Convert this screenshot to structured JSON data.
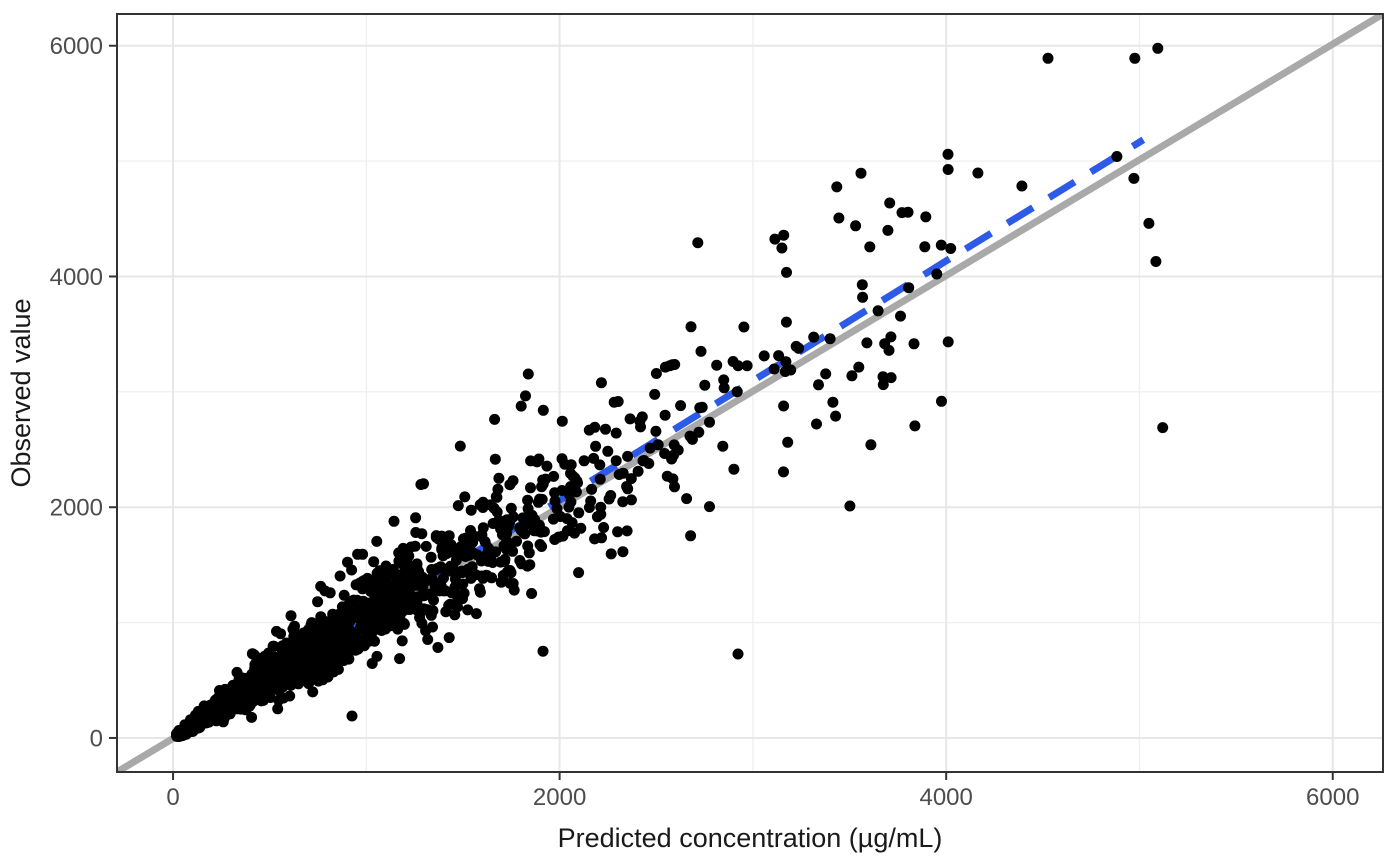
{
  "figure": {
    "background": "#FFFFFF"
  },
  "chart_data": {
    "type": "scatter",
    "title": "",
    "xlabel": "Predicted concentration (µg/mL)",
    "ylabel": "Observed value",
    "xlim": [
      -290,
      6260
    ],
    "ylim": [
      -295,
      6275
    ],
    "x_ticks": [
      0,
      2000,
      4000,
      6000
    ],
    "x_minor_ticks": [
      1000,
      3000,
      5000
    ],
    "y_ticks": [
      0,
      2000,
      4000,
      6000
    ],
    "y_minor_ticks": [
      1000,
      3000,
      5000
    ],
    "grid": true,
    "legend": "none",
    "points": {
      "color": "#000000",
      "radius": 5.5,
      "n_total": 1904,
      "distribution": {
        "seed": 20240607,
        "n_random": 1880,
        "x_model": "truncated_exponential",
        "x_mean": 800,
        "x_min": 18,
        "x_max": 4080,
        "y_model": "y = x * exp(N(0.025, 0.165)) (12% wide: sigma 0.29) + N(0, 14)",
        "multiplier_clamp": [
          0.42,
          1.72
        ],
        "multiplier_clamp_high_x": [
          0.55,
          1.38
        ],
        "high_x_threshold": 2900,
        "y_min": 12
      },
      "explicit_points": [
        [
          4527,
          5891
        ],
        [
          4976,
          5891
        ],
        [
          5095,
          5978
        ],
        [
          4883,
          5040
        ],
        [
          4971,
          4850
        ],
        [
          4392,
          4784
        ],
        [
          4164,
          4897
        ],
        [
          5049,
          4460
        ],
        [
          5085,
          4130
        ],
        [
          3434,
          4776
        ],
        [
          3708,
          4637
        ],
        [
          3445,
          4507
        ],
        [
          3150,
          4247
        ],
        [
          3605,
          4256
        ],
        [
          3590,
          3424
        ],
        [
          3714,
          3476
        ],
        [
          3512,
          3139
        ],
        [
          3673,
          3130
        ],
        [
          3838,
          2705
        ],
        [
          3502,
          2011
        ],
        [
          5120,
          2690
        ],
        [
          926,
          190
        ],
        [
          1914,
          752
        ],
        [
          2923,
          728
        ]
      ]
    },
    "identity_line": {
      "style": "solid",
      "color": "#A9A9A9",
      "width": 7,
      "from": [
        -290,
        -295
      ],
      "to": [
        6260,
        6275
      ]
    },
    "smooth_line": {
      "style": "dashed",
      "color": "#2D5AE6",
      "width": 7,
      "dash": [
        30,
        19
      ],
      "points": [
        [
          0,
          5
        ],
        [
          1000,
          1028
        ],
        [
          2000,
          2060
        ],
        [
          3000,
          3096
        ],
        [
          4000,
          4135
        ],
        [
          5020,
          5185
        ]
      ]
    }
  },
  "style": {
    "panel_border_color": "#333333",
    "grid_major_color": "#E7E7E7",
    "grid_minor_color": "#F0F0F0",
    "tick_color": "#333333",
    "tick_label_color": "#4D4D4D",
    "axis_title_color": "#1A1A1A"
  }
}
